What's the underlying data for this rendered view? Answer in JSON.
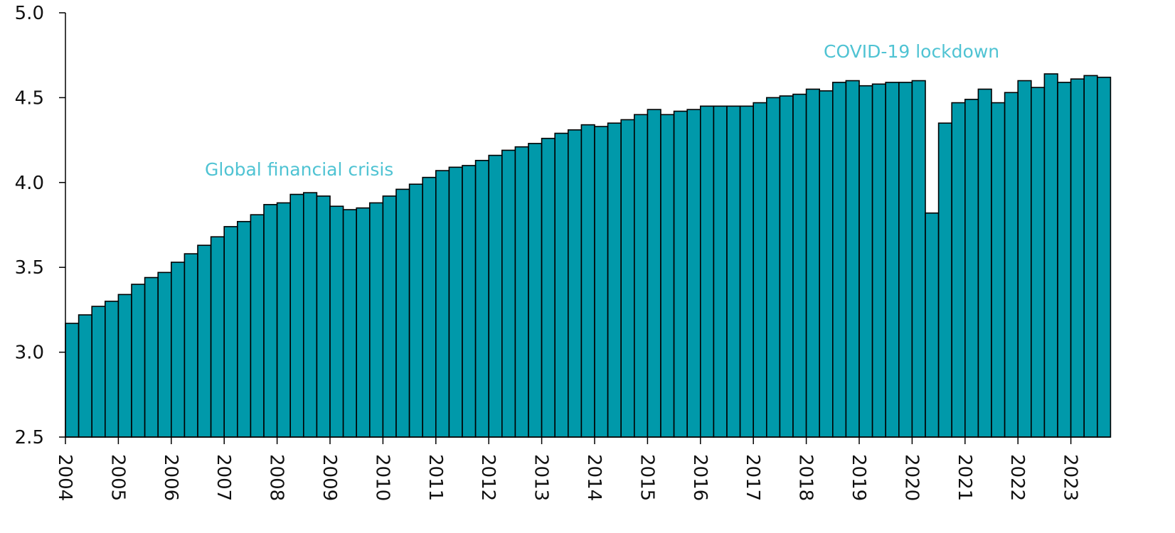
{
  "chart_data": {
    "type": "bar",
    "categories": [
      "2004",
      null,
      null,
      null,
      "2005",
      null,
      null,
      null,
      "2006",
      null,
      null,
      null,
      "2007",
      null,
      null,
      null,
      "2008",
      null,
      null,
      null,
      "2009",
      null,
      null,
      null,
      "2010",
      null,
      null,
      null,
      "2011",
      null,
      null,
      null,
      "2012",
      null,
      null,
      null,
      "2013",
      null,
      null,
      null,
      "2014",
      null,
      null,
      null,
      "2015",
      null,
      null,
      null,
      "2016",
      null,
      null,
      null,
      "2017",
      null,
      null,
      null,
      "2018",
      null,
      null,
      null,
      "2019",
      null,
      null,
      null,
      "2020",
      null,
      null,
      null,
      "2021",
      null,
      null,
      null,
      "2022",
      null,
      null,
      null,
      "2023",
      null,
      null
    ],
    "values": [
      3.17,
      3.22,
      3.27,
      3.3,
      3.34,
      3.4,
      3.44,
      3.47,
      3.53,
      3.58,
      3.63,
      3.68,
      3.74,
      3.77,
      3.81,
      3.87,
      3.88,
      3.93,
      3.94,
      3.92,
      3.86,
      3.84,
      3.85,
      3.88,
      3.92,
      3.96,
      3.99,
      4.03,
      4.07,
      4.09,
      4.1,
      4.13,
      4.16,
      4.19,
      4.21,
      4.23,
      4.26,
      4.29,
      4.31,
      4.34,
      4.33,
      4.35,
      4.37,
      4.4,
      4.43,
      4.4,
      4.42,
      4.43,
      4.45,
      4.45,
      4.45,
      4.45,
      4.47,
      4.5,
      4.51,
      4.52,
      4.55,
      4.54,
      4.59,
      4.6,
      4.57,
      4.58,
      4.59,
      4.59,
      4.6,
      3.82,
      4.35,
      4.47,
      4.49,
      4.55,
      4.47,
      4.53,
      4.6,
      4.56,
      4.64,
      4.59,
      4.61,
      4.63,
      4.62
    ],
    "color": "#0099aa",
    "ylim": [
      2.5,
      5.0
    ],
    "yticks": [
      2.5,
      {
        "value": 3,
        "label": "3.0"
      },
      3.5,
      {
        "value": 4,
        "label": "4.0"
      },
      4.5,
      {
        "value": 5,
        "label": "5.0"
      }
    ],
    "annotations": [
      "Global financial crisis",
      "COVID-19 lockdown"
    ]
  }
}
